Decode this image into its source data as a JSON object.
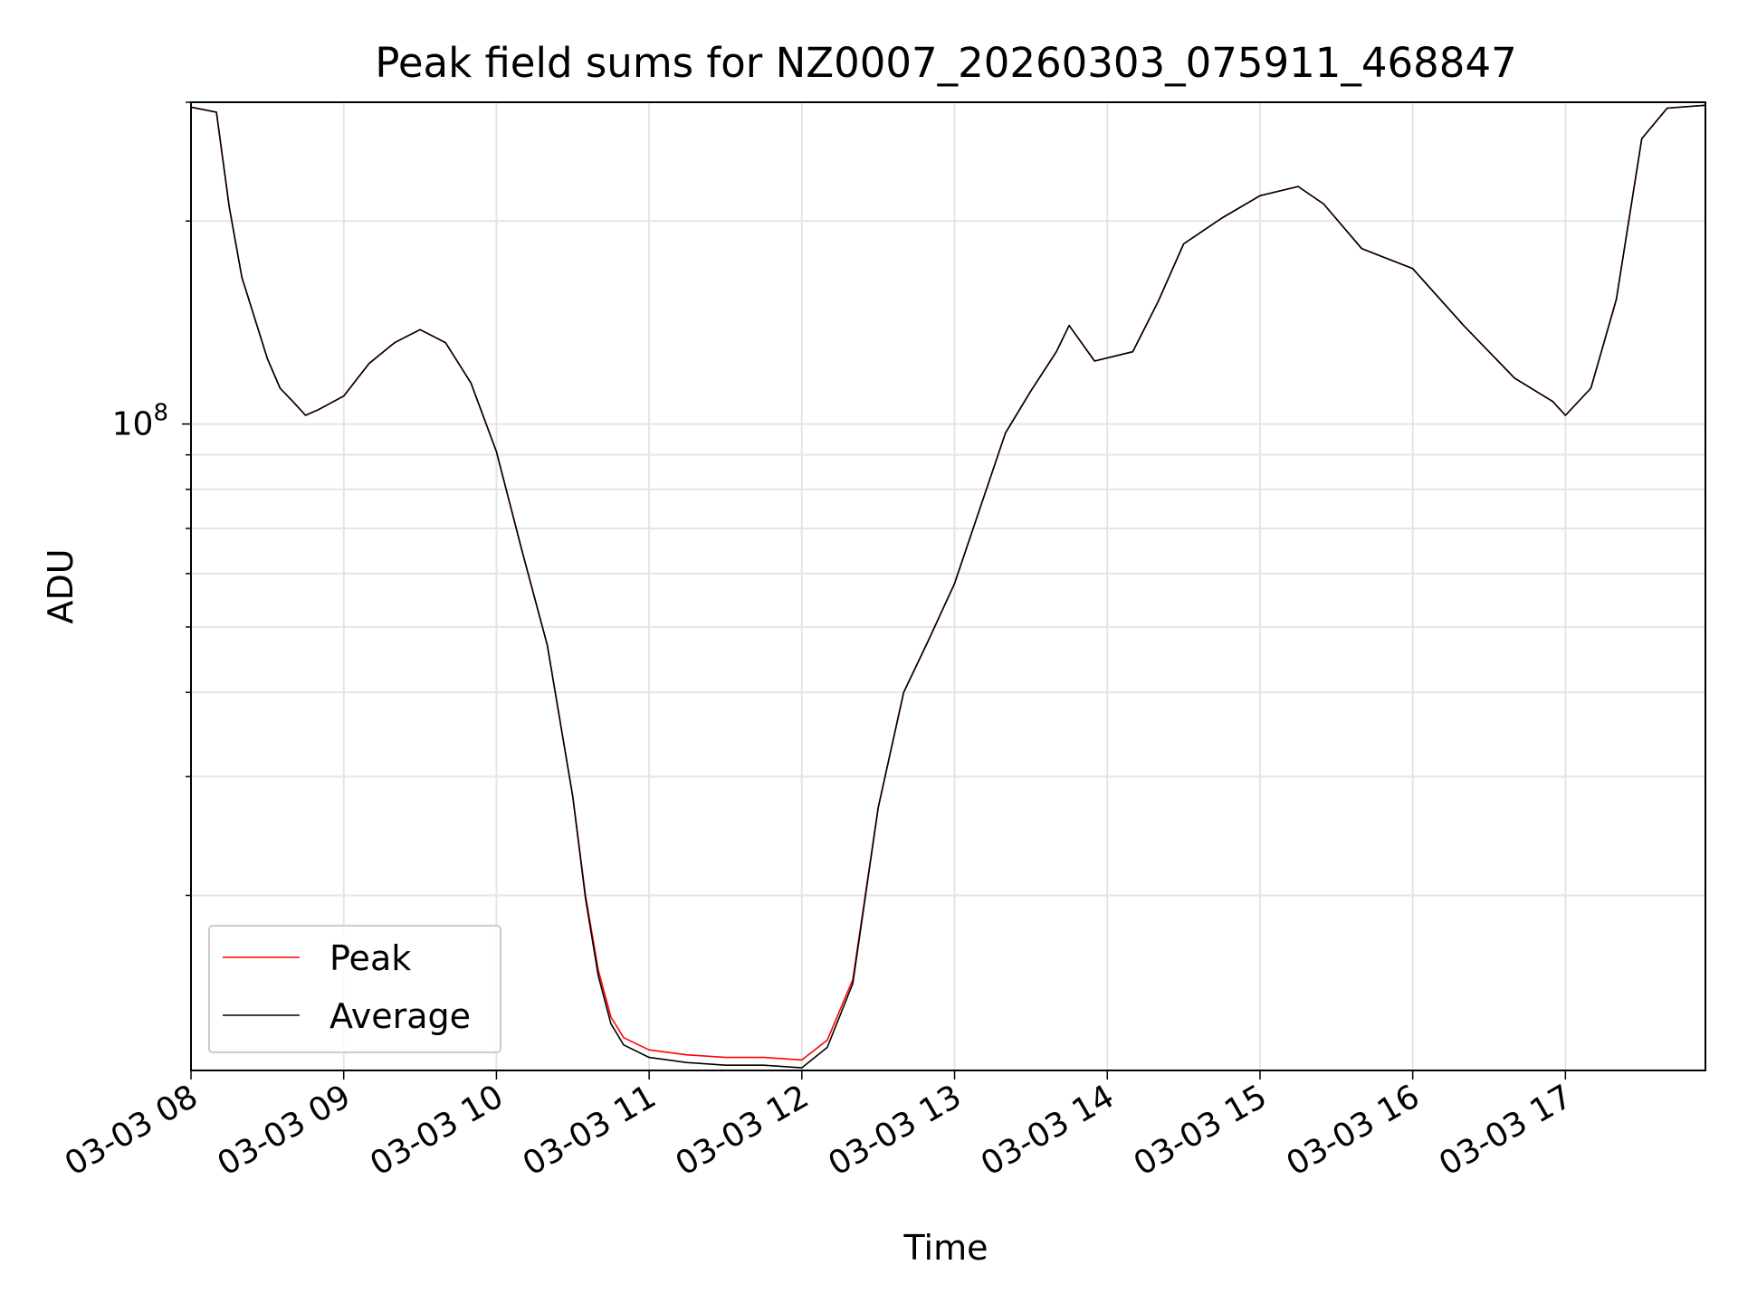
{
  "chart_data": {
    "type": "line",
    "title": "Peak field sums for NZ0007_20260303_075911_468847",
    "xlabel": "Time",
    "ylabel": "ADU",
    "y_scale": "log",
    "ylim": [
      11000000,
      300000000
    ],
    "xlim": [
      "2026-03-03 08:00",
      "2026-03-03 17:55"
    ],
    "x_ticks": [
      "03-03 08",
      "03-03 09",
      "03-03 10",
      "03-03 11",
      "03-03 12",
      "03-03 13",
      "03-03 14",
      "03-03 15",
      "03-03 16",
      "03-03 17"
    ],
    "y_ticks": [
      "10^8"
    ],
    "grid": true,
    "legend": {
      "placement": "lower-left",
      "entries": [
        "Peak",
        "Average"
      ]
    },
    "colors": {
      "Peak": "#ff0000",
      "Average": "#000000"
    },
    "series": [
      {
        "name": "Peak",
        "x": [
          "2026-03-03 08:00",
          "2026-03-03 08:10",
          "2026-03-03 08:15",
          "2026-03-03 08:20",
          "2026-03-03 08:30",
          "2026-03-03 08:35",
          "2026-03-03 08:40",
          "2026-03-03 08:45",
          "2026-03-03 08:50",
          "2026-03-03 09:00",
          "2026-03-03 09:10",
          "2026-03-03 09:20",
          "2026-03-03 09:25",
          "2026-03-03 09:30",
          "2026-03-03 09:40",
          "2026-03-03 09:50",
          "2026-03-03 10:00",
          "2026-03-03 10:10",
          "2026-03-03 10:20",
          "2026-03-03 10:30",
          "2026-03-03 10:35",
          "2026-03-03 10:40",
          "2026-03-03 10:45",
          "2026-03-03 10:50",
          "2026-03-03 11:00",
          "2026-03-03 11:15",
          "2026-03-03 11:30",
          "2026-03-03 11:45",
          "2026-03-03 12:00",
          "2026-03-03 12:10",
          "2026-03-03 12:20",
          "2026-03-03 12:30",
          "2026-03-03 12:40",
          "2026-03-03 12:50",
          "2026-03-03 13:00",
          "2026-03-03 13:10",
          "2026-03-03 13:20",
          "2026-03-03 13:30",
          "2026-03-03 13:40",
          "2026-03-03 13:45",
          "2026-03-03 13:55",
          "2026-03-03 14:10",
          "2026-03-03 14:20",
          "2026-03-03 14:30",
          "2026-03-03 14:45",
          "2026-03-03 15:00",
          "2026-03-03 15:15",
          "2026-03-03 15:25",
          "2026-03-03 15:40",
          "2026-03-03 16:00",
          "2026-03-03 16:20",
          "2026-03-03 16:40",
          "2026-03-03 16:55",
          "2026-03-03 17:00",
          "2026-03-03 17:10",
          "2026-03-03 17:20",
          "2026-03-03 17:30",
          "2026-03-03 17:40",
          "2026-03-03 17:55"
        ],
        "values": [
          295000000,
          290000000,
          210000000,
          165000000,
          125000000,
          113000000,
          108000000,
          103000000,
          105000000,
          110000000,
          123000000,
          132000000,
          135000000,
          138000000,
          132000000,
          115000000,
          91000000,
          65000000,
          47000000,
          28000000,
          20000000,
          15500000,
          13200000,
          12300000,
          11800000,
          11600000,
          11500000,
          11500000,
          11400000,
          12200000,
          15000000,
          27000000,
          40000000,
          48000000,
          58000000,
          75000000,
          97000000,
          112000000,
          128000000,
          140000000,
          124000000,
          128000000,
          152000000,
          185000000,
          202000000,
          218000000,
          225000000,
          212000000,
          182000000,
          170000000,
          140000000,
          117000000,
          108000000,
          103000000,
          113000000,
          153000000,
          265000000,
          294000000,
          297000000
        ]
      },
      {
        "name": "Average",
        "x": [
          "2026-03-03 08:00",
          "2026-03-03 08:10",
          "2026-03-03 08:15",
          "2026-03-03 08:20",
          "2026-03-03 08:30",
          "2026-03-03 08:35",
          "2026-03-03 08:40",
          "2026-03-03 08:45",
          "2026-03-03 08:50",
          "2026-03-03 09:00",
          "2026-03-03 09:10",
          "2026-03-03 09:20",
          "2026-03-03 09:25",
          "2026-03-03 09:30",
          "2026-03-03 09:40",
          "2026-03-03 09:50",
          "2026-03-03 10:00",
          "2026-03-03 10:10",
          "2026-03-03 10:20",
          "2026-03-03 10:30",
          "2026-03-03 10:35",
          "2026-03-03 10:40",
          "2026-03-03 10:45",
          "2026-03-03 10:50",
          "2026-03-03 11:00",
          "2026-03-03 11:15",
          "2026-03-03 11:30",
          "2026-03-03 11:45",
          "2026-03-03 12:00",
          "2026-03-03 12:10",
          "2026-03-03 12:20",
          "2026-03-03 12:30",
          "2026-03-03 12:40",
          "2026-03-03 12:50",
          "2026-03-03 13:00",
          "2026-03-03 13:10",
          "2026-03-03 13:20",
          "2026-03-03 13:30",
          "2026-03-03 13:40",
          "2026-03-03 13:45",
          "2026-03-03 13:55",
          "2026-03-03 14:10",
          "2026-03-03 14:20",
          "2026-03-03 14:30",
          "2026-03-03 14:45",
          "2026-03-03 15:00",
          "2026-03-03 15:15",
          "2026-03-03 15:25",
          "2026-03-03 15:40",
          "2026-03-03 16:00",
          "2026-03-03 16:20",
          "2026-03-03 16:40",
          "2026-03-03 16:55",
          "2026-03-03 17:00",
          "2026-03-03 17:10",
          "2026-03-03 17:20",
          "2026-03-03 17:30",
          "2026-03-03 17:40",
          "2026-03-03 17:55"
        ],
        "values": [
          295000000,
          290000000,
          210000000,
          165000000,
          125000000,
          113000000,
          108000000,
          103000000,
          105000000,
          110000000,
          123000000,
          132000000,
          135000000,
          138000000,
          132000000,
          115000000,
          91000000,
          65000000,
          47000000,
          28000000,
          19800000,
          15200000,
          12900000,
          12000000,
          11500000,
          11300000,
          11200000,
          11200000,
          11100000,
          11900000,
          14800000,
          27000000,
          40000000,
          48000000,
          58000000,
          75000000,
          97000000,
          112000000,
          128000000,
          140000000,
          124000000,
          128000000,
          152000000,
          185000000,
          202000000,
          218000000,
          225000000,
          212000000,
          182000000,
          170000000,
          140000000,
          117000000,
          108000000,
          103000000,
          113000000,
          153000000,
          265000000,
          294000000,
          297000000
        ]
      }
    ]
  }
}
